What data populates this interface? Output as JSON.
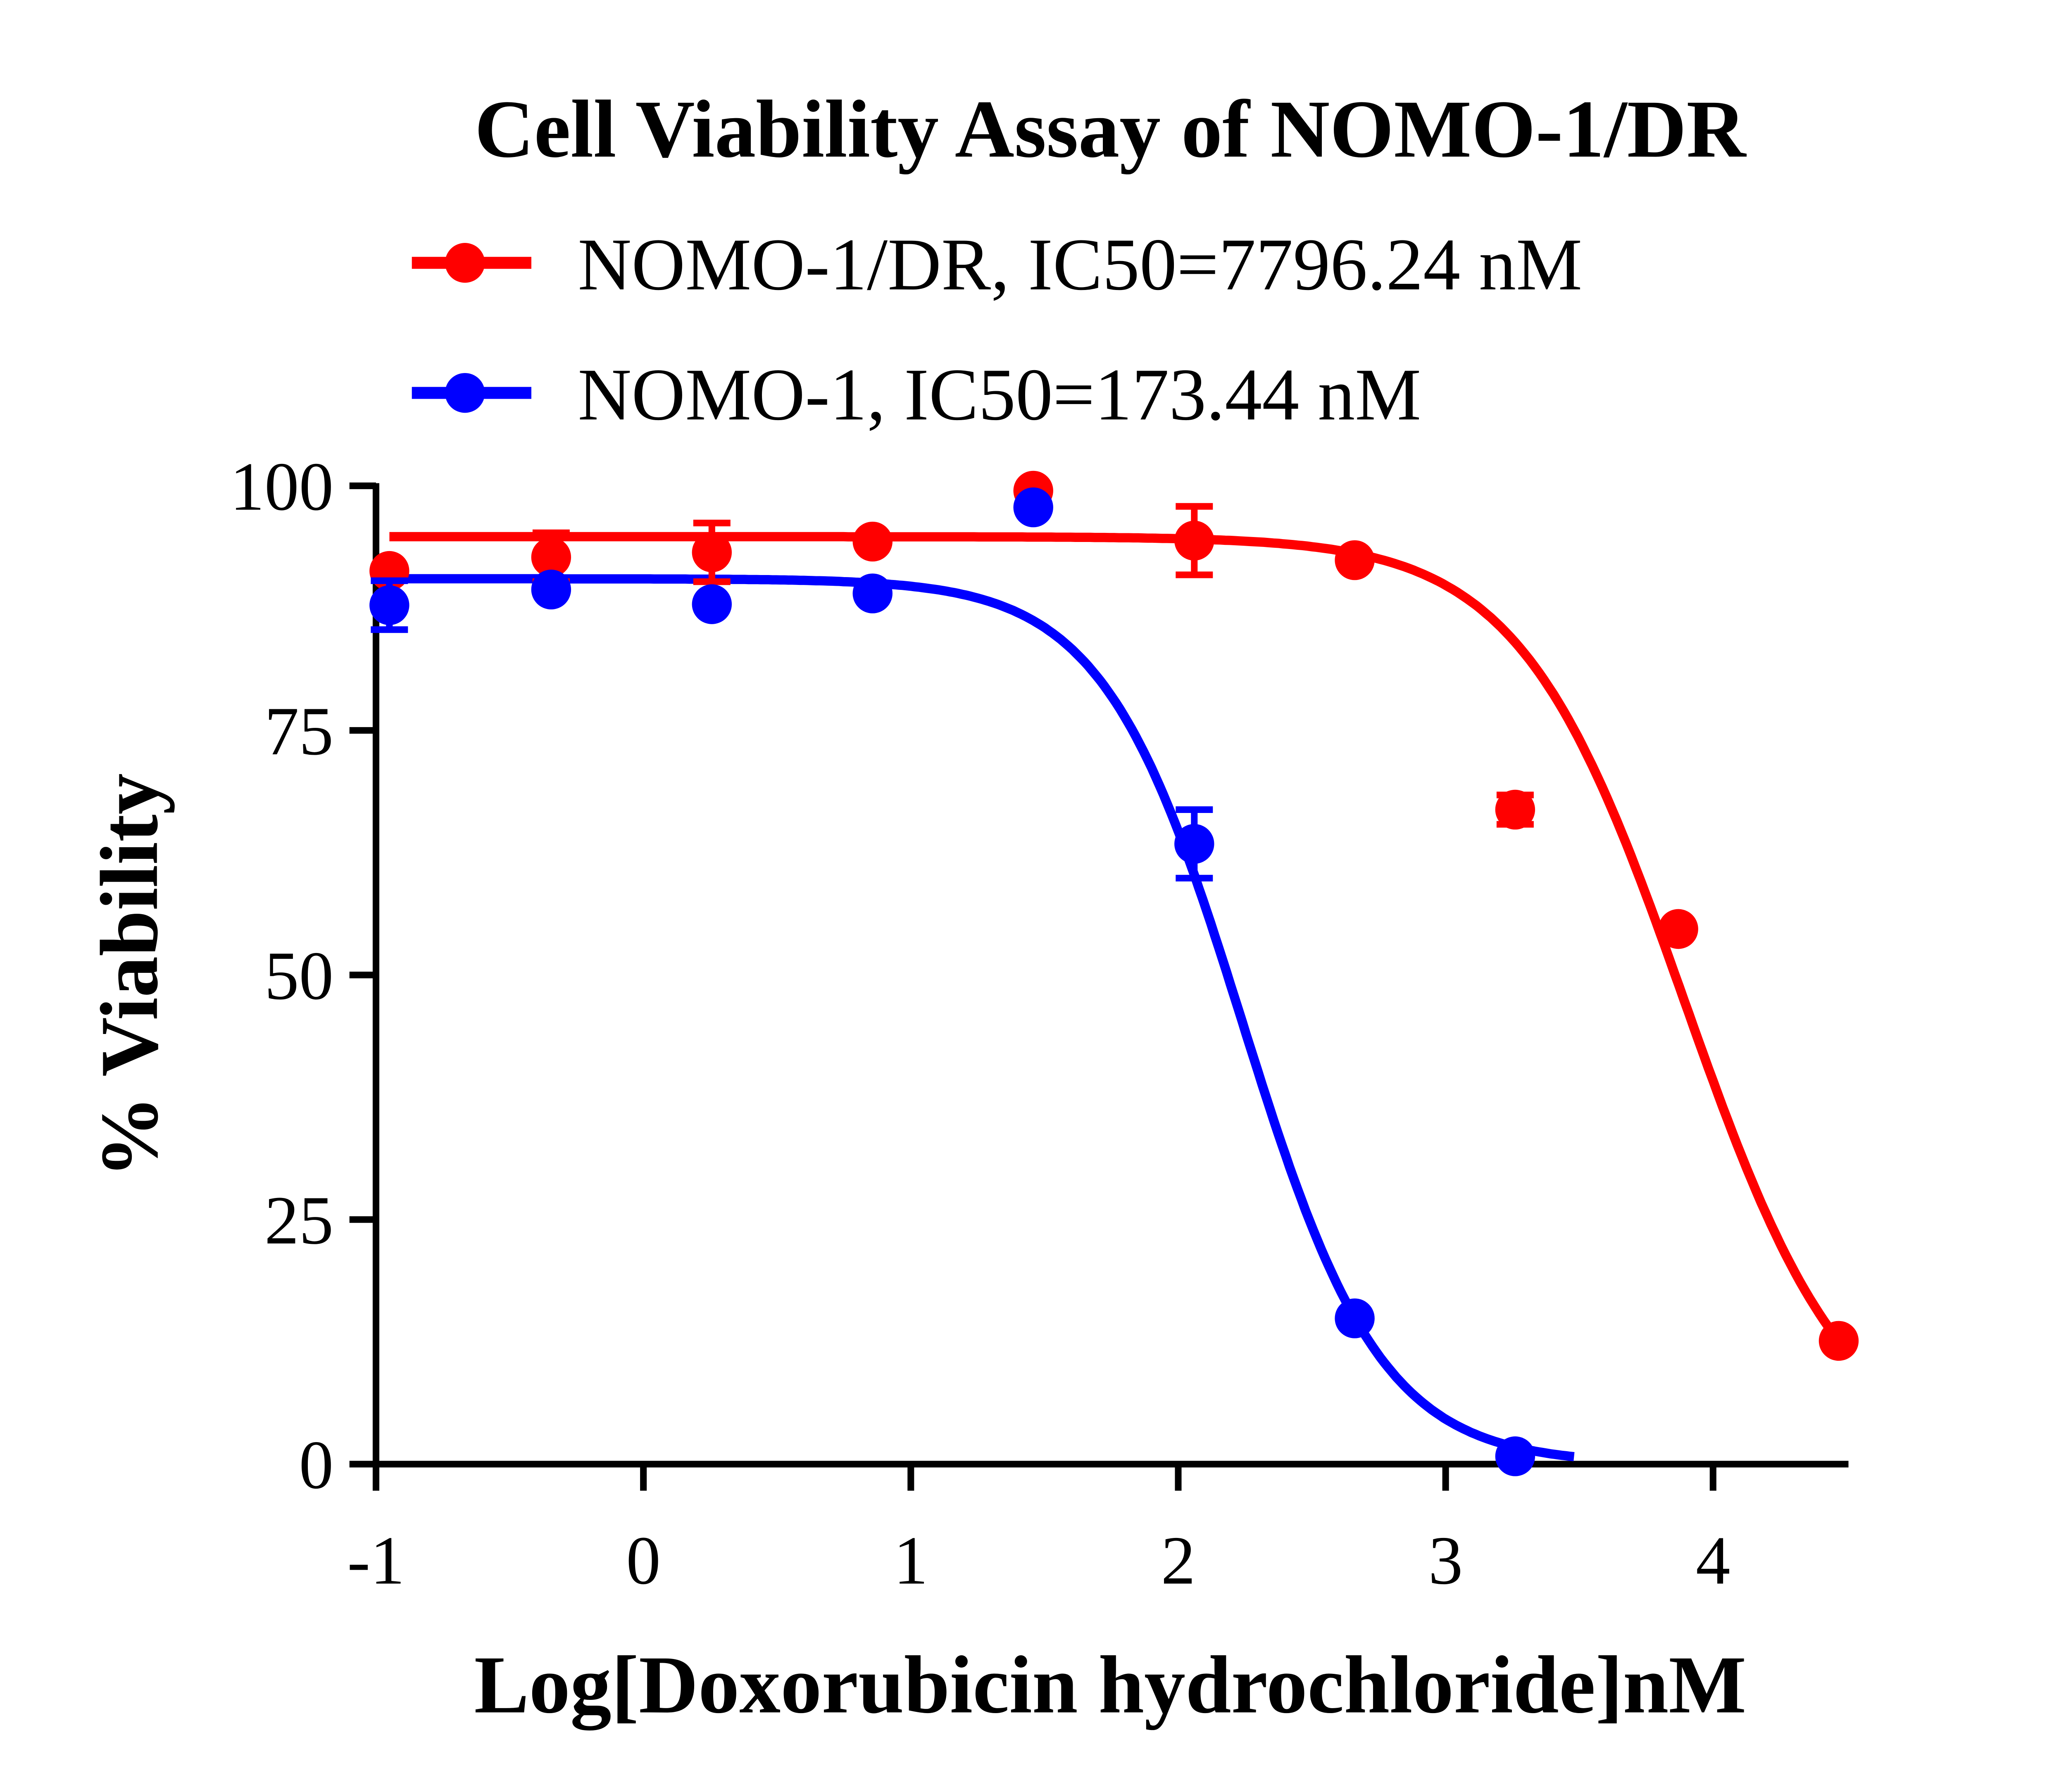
{
  "chart_data": {
    "type": "scatter",
    "title": "Cell Viability Assay of NOMO-1/DR",
    "xlabel": "Log[Doxorubicin hydrochloride]nM",
    "ylabel": "% Viability",
    "xlim": [
      -1,
      4.5
    ],
    "ylim": [
      0,
      100
    ],
    "xticks": [
      "-1",
      "0",
      "1",
      "2",
      "3",
      "4"
    ],
    "yticks": [
      "0",
      "25",
      "50",
      "75",
      "100"
    ],
    "grid": false,
    "legend_position": "top",
    "series": [
      {
        "name": "NOMO-1/DR,  IC50=7796.24 nM",
        "color": "#ff0000",
        "x": [
          -0.95,
          -0.345,
          0.256,
          0.857,
          1.458,
          2.06,
          2.66,
          3.26,
          3.87,
          4.47
        ],
        "y": [
          91.3,
          92.7,
          93.2,
          94.3,
          99.5,
          94.4,
          92.4,
          66.9,
          54.7,
          12.6
        ],
        "error": [
          0,
          2.5,
          3,
          0,
          0,
          3.5,
          0,
          1.5,
          0,
          0
        ],
        "fit": {
          "top": 94.8,
          "bottom": 0,
          "logIC50": 3.892,
          "hill": 1.41,
          "xrange": [
            -0.95,
            4.47
          ]
        }
      },
      {
        "name": "NOMO-1,  IC50=173.44 nM",
        "color": "#0000ff",
        "x": [
          -0.95,
          -0.345,
          0.256,
          0.857,
          1.458,
          2.06,
          2.66,
          3.26
        ],
        "y": [
          87.8,
          89.4,
          87.9,
          89.0,
          97.8,
          63.4,
          14.9,
          0.8
        ],
        "error": [
          2.5,
          0,
          0,
          0,
          0,
          3.5,
          0,
          0
        ],
        "fit": {
          "top": 90.5,
          "bottom": 0,
          "logIC50": 2.239,
          "hill": 1.67,
          "xrange": [
            -0.95,
            3.48
          ]
        }
      }
    ]
  }
}
